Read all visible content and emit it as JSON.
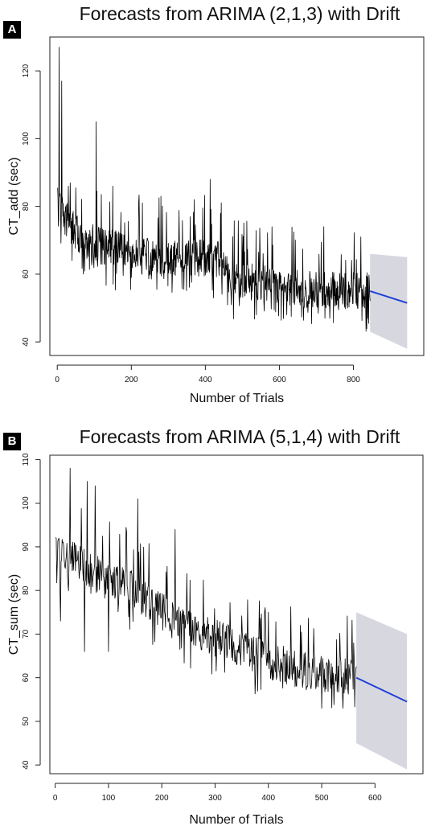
{
  "chart_data": [
    {
      "panel": "A",
      "type": "line",
      "title": "Forecasts from ARIMA (2,1,3) with Drift",
      "xlabel": "Number of Trials",
      "ylabel": "CT_add (sec)",
      "xlim": [
        -20,
        990
      ],
      "ylim": [
        36,
        130
      ],
      "xticks": [
        0,
        200,
        400,
        600,
        800
      ],
      "yticks": [
        40,
        60,
        80,
        100,
        120
      ],
      "colors": {
        "series": "#000000",
        "forecast": "#1f3fd6",
        "interval": "#d7d7e0"
      },
      "observed": {
        "n": 845,
        "trend": [
          [
            1,
            80
          ],
          [
            50,
            72
          ],
          [
            100,
            69
          ],
          [
            200,
            66
          ],
          [
            300,
            64
          ],
          [
            400,
            65
          ],
          [
            450,
            64
          ],
          [
            470,
            58
          ],
          [
            600,
            57
          ],
          [
            700,
            55
          ],
          [
            845,
            55
          ]
        ],
        "spikes": [
          [
            5,
            127
          ],
          [
            12,
            117
          ],
          [
            30,
            86
          ],
          [
            105,
            105
          ],
          [
            150,
            86
          ],
          [
            230,
            81
          ],
          [
            280,
            83
          ],
          [
            370,
            82
          ],
          [
            413,
            88
          ],
          [
            580,
            74
          ],
          [
            720,
            74
          ],
          [
            820,
            71
          ]
        ],
        "dips": [
          [
            5,
            65
          ],
          [
            40,
            64
          ],
          [
            200,
            59
          ],
          [
            470,
            51
          ],
          [
            830,
            50
          ]
        ]
      },
      "forecast": {
        "x": [
          845,
          945
        ],
        "y": [
          55,
          51.5
        ]
      },
      "interval": {
        "upper": [
          [
            845,
            66
          ],
          [
            945,
            65
          ]
        ],
        "lower": [
          [
            845,
            43
          ],
          [
            945,
            38
          ]
        ]
      }
    },
    {
      "panel": "B",
      "type": "line",
      "title": "Forecasts from ARIMA (5,1,4) with Drift",
      "xlabel": "Number of Trials",
      "ylabel": "CT_sum (sec)",
      "xlim": [
        -10,
        690
      ],
      "ylim": [
        38,
        111
      ],
      "xticks": [
        0,
        100,
        200,
        300,
        400,
        500,
        600
      ],
      "yticks": [
        40,
        50,
        60,
        70,
        80,
        90,
        100,
        110
      ],
      "colors": {
        "series": "#000000",
        "forecast": "#1f3fd6",
        "interval": "#d7d7e0"
      },
      "observed": {
        "n": 565,
        "trend": [
          [
            1,
            88
          ],
          [
            50,
            86
          ],
          [
            100,
            82
          ],
          [
            150,
            80
          ],
          [
            200,
            75
          ],
          [
            250,
            71
          ],
          [
            300,
            69
          ],
          [
            350,
            67
          ],
          [
            400,
            64
          ],
          [
            450,
            62
          ],
          [
            500,
            61
          ],
          [
            565,
            60
          ]
        ],
        "spikes": [
          [
            28,
            108
          ],
          [
            60,
            105
          ],
          [
            75,
            104
          ],
          [
            155,
            101
          ],
          [
            225,
            94
          ],
          [
            400,
            75
          ],
          [
            460,
            72
          ],
          [
            560,
            68
          ]
        ],
        "dips": [
          [
            10,
            73
          ],
          [
            55,
            66
          ],
          [
            100,
            66
          ],
          [
            500,
            53
          ],
          [
            540,
            53
          ]
        ]
      },
      "forecast": {
        "x": [
          565,
          660
        ],
        "y": [
          60,
          54.5
        ]
      },
      "interval": {
        "upper": [
          [
            565,
            75
          ],
          [
            660,
            70
          ]
        ],
        "lower": [
          [
            565,
            45
          ],
          [
            660,
            39
          ]
        ]
      }
    }
  ]
}
